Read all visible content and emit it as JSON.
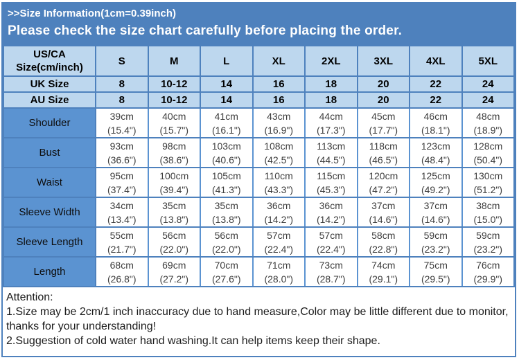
{
  "banner": {
    "title": ">>Size Information(1cm=0.39inch)",
    "subtitle": "Please check the size chart carefully before placing the order."
  },
  "colors": {
    "banner_blue": "#4E81BD",
    "header_light_blue": "#BDD7EE",
    "label_medium_blue": "#5B93D1",
    "border_blue": "#4E81BD",
    "text_dark": "#1c1c1c"
  },
  "table": {
    "header_label": "US/CA Size(cm/inch)",
    "columns": [
      "S",
      "M",
      "L",
      "XL",
      "2XL",
      "3XL",
      "4XL",
      "5XL"
    ],
    "uk_row": {
      "label": "UK Size",
      "values": [
        "8",
        "10-12",
        "14",
        "16",
        "18",
        "20",
        "22",
        "24"
      ]
    },
    "au_row": {
      "label": "AU Size",
      "values": [
        "8",
        "10-12",
        "14",
        "16",
        "18",
        "20",
        "22",
        "24"
      ]
    },
    "rows": [
      {
        "label": "Shoulder",
        "cm": [
          "39cm",
          "40cm",
          "41cm",
          "43cm",
          "44cm",
          "45cm",
          "46cm",
          "48cm"
        ],
        "inch": [
          "(15.4\")",
          "(15.7\")",
          "(16.1\")",
          "(16.9\")",
          "(17.3\")",
          "(17.7\")",
          "(18.1\")",
          "(18.9\")"
        ]
      },
      {
        "label": "Bust",
        "cm": [
          "93cm",
          "98cm",
          "103cm",
          "108cm",
          "113cm",
          "118cm",
          "123cm",
          "128cm"
        ],
        "inch": [
          "(36.6\")",
          "(38.6\")",
          "(40.6\")",
          "(42.5\")",
          "(44.5\")",
          "(46.5\")",
          "(48.4\")",
          "(50.4\")"
        ]
      },
      {
        "label": "Waist",
        "cm": [
          "95cm",
          "100cm",
          "105cm",
          "110cm",
          "115cm",
          "120cm",
          "125cm",
          "130cm"
        ],
        "inch": [
          "(37.4\")",
          "(39.4\")",
          "(41.3\")",
          "(43.3\")",
          "(45.3\")",
          "(47.2\")",
          "(49.2\")",
          "(51.2\")"
        ]
      },
      {
        "label": "Sleeve Width",
        "cm": [
          "34cm",
          "35cm",
          "35cm",
          "36cm",
          "36cm",
          "37cm",
          "37cm",
          "38cm"
        ],
        "inch": [
          "(13.4\")",
          "(13.8\")",
          "(13.8\")",
          "(14.2\")",
          "(14.2\")",
          "(14.6\")",
          "(14.6\")",
          "(15.0\")"
        ]
      },
      {
        "label": "Sleeve Length",
        "cm": [
          "55cm",
          "56cm",
          "56cm",
          "57cm",
          "57cm",
          "58cm",
          "59cm",
          "59cm"
        ],
        "inch": [
          "(21.7\")",
          "(22.0\")",
          "(22.0\")",
          "(22.4\")",
          "(22.4\")",
          "(22.8\")",
          "(23.2\")",
          "(23.2\")"
        ]
      },
      {
        "label": "Length",
        "cm": [
          "68cm",
          "69cm",
          "70cm",
          "71cm",
          "73cm",
          "74cm",
          "75cm",
          "76cm"
        ],
        "inch": [
          "(26.8\")",
          "(27.2\")",
          "(27.6\")",
          "(28.0\")",
          "(28.7\")",
          "(29.1\")",
          "(29.5\")",
          "(29.9\")"
        ]
      }
    ]
  },
  "attention": {
    "title": "Attention:",
    "items": [
      "1.Size may be 2cm/1 inch inaccuracy due to hand measure,Color may be little different due to monitor,thanks for your understanding!",
      "2.Suggestion of cold water hand washing.It can help items keep their shape."
    ]
  }
}
